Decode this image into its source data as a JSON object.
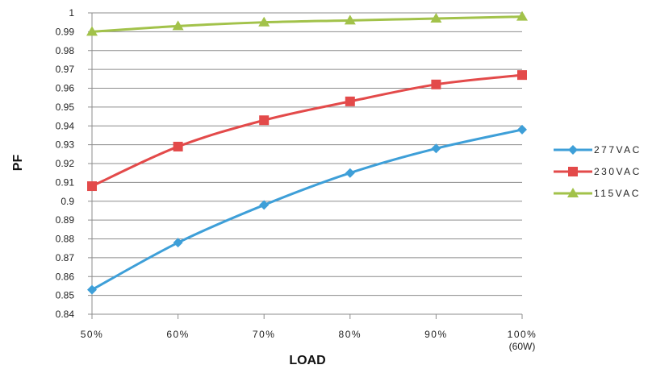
{
  "chart_data": {
    "type": "line",
    "xlabel": "LOAD",
    "ylabel": "PF",
    "categories": [
      "50%",
      "60%",
      "70%",
      "80%",
      "90%",
      "100%"
    ],
    "category_notes": [
      "",
      "",
      "",
      "",
      "",
      "(60W)"
    ],
    "ylim": [
      0.84,
      1.0
    ],
    "yticks": [
      "0.84",
      "0.85",
      "0.86",
      "0.87",
      "0.88",
      "0.89",
      "0.9",
      "0.91",
      "0.92",
      "0.93",
      "0.94",
      "0.95",
      "0.96",
      "0.97",
      "0.98",
      "0.99",
      "1"
    ],
    "grid": true,
    "legend_position": "right",
    "series": [
      {
        "name": "277VAC",
        "color": "#3e9fd8",
        "marker": "diamond",
        "values": [
          0.853,
          0.878,
          0.898,
          0.915,
          0.928,
          0.938
        ]
      },
      {
        "name": "230VAC",
        "color": "#e34a4a",
        "marker": "square",
        "values": [
          0.908,
          0.929,
          0.943,
          0.953,
          0.962,
          0.967
        ]
      },
      {
        "name": "115VAC",
        "color": "#a2c24a",
        "marker": "triangle",
        "values": [
          0.99,
          0.993,
          0.995,
          0.996,
          0.997,
          0.998
        ]
      }
    ]
  }
}
